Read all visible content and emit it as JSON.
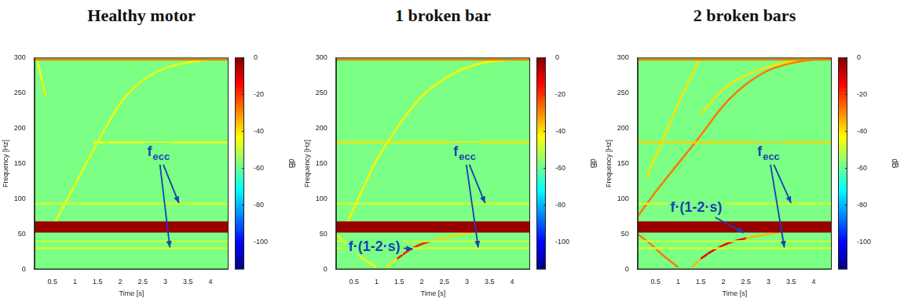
{
  "chart_data": [
    {
      "type": "spectrogram",
      "title": "Healthy motor",
      "xlabel": "Time [s]",
      "ylabel": "Frequency [Hz]",
      "xlim": [
        0.1,
        4.4
      ],
      "xticks": [
        0.5,
        1,
        1.5,
        2,
        2.5,
        3,
        3.5,
        4
      ],
      "ylim": [
        0,
        300
      ],
      "yticks": [
        0,
        50,
        100,
        150,
        200,
        250,
        300
      ],
      "grid": false,
      "background_db": -58,
      "bands": [
        {
          "x": [
            0.1,
            4.4
          ],
          "low": 52,
          "high": 68,
          "db": -3
        }
      ],
      "components": [
        {
          "x": [
            0.1,
            4.4
          ],
          "y": [
            297,
            297
          ],
          "db": -28
        },
        {
          "x": [
            1.4,
            4.4
          ],
          "y": [
            180,
            180
          ],
          "db": -45
        },
        {
          "x": [
            0.1,
            4.4
          ],
          "y": [
            93,
            93
          ],
          "db": -48
        },
        {
          "x": [
            0.1,
            4.4
          ],
          "y": [
            30,
            30
          ],
          "db": -48
        },
        {
          "x": [
            0.1,
            4.4
          ],
          "y": [
            40,
            40
          ],
          "db": -50
        },
        {
          "x": [
            0.5,
            1.0,
            1.5,
            2.0,
            2.5,
            3.0,
            3.5,
            4.0,
            4.4
          ],
          "y": [
            60,
            120,
            180,
            235,
            268,
            285,
            293,
            297,
            298
          ],
          "db": -45
        },
        {
          "x": [
            0.15,
            0.35
          ],
          "y": [
            300,
            245
          ],
          "db": -45
        }
      ],
      "colorbar": {
        "lim": [
          -115,
          0
        ],
        "ticks": [
          0,
          -20,
          -40,
          -60,
          -80,
          -100
        ],
        "label": "dB"
      },
      "annotations": [
        {
          "text": "f",
          "subscript": "ecc",
          "x": 2.85,
          "y": 165,
          "arrows": [
            {
              "x": 3.3,
              "y": 94
            },
            {
              "x": 3.1,
              "y": 31
            }
          ]
        }
      ]
    },
    {
      "type": "spectrogram",
      "title": "1 broken bar",
      "xlabel": "Time [s]",
      "ylabel": "Frequency [Hz]",
      "xlim": [
        0.1,
        4.4
      ],
      "xticks": [
        0.5,
        1,
        1.5,
        2,
        2.5,
        3,
        3.5,
        4
      ],
      "ylim": [
        0,
        300
      ],
      "yticks": [
        0,
        50,
        100,
        150,
        200,
        250,
        300
      ],
      "grid": false,
      "background_db": -58,
      "bands": [
        {
          "x": [
            0.1,
            4.4
          ],
          "low": 52,
          "high": 68,
          "db": -3
        }
      ],
      "components": [
        {
          "x": [
            0.1,
            4.4
          ],
          "y": [
            297,
            297
          ],
          "db": -28
        },
        {
          "x": [
            0.1,
            4.4
          ],
          "y": [
            180,
            180
          ],
          "db": -40
        },
        {
          "x": [
            0.1,
            4.4
          ],
          "y": [
            93,
            93
          ],
          "db": -48
        },
        {
          "x": [
            0.1,
            4.4
          ],
          "y": [
            30,
            30
          ],
          "db": -48
        },
        {
          "x": [
            0.1,
            4.4
          ],
          "y": [
            40,
            40
          ],
          "db": -50
        },
        {
          "x": [
            0.3,
            0.7,
            1.0,
            1.5,
            2.0,
            2.5,
            3.0,
            3.5,
            4.0,
            4.4
          ],
          "y": [
            60,
            115,
            155,
            205,
            245,
            270,
            286,
            294,
            297,
            298
          ],
          "db": -42
        },
        {
          "x": [
            0.1,
            0.4,
            0.7,
            1.0
          ],
          "y": [
            50,
            32,
            15,
            3
          ],
          "db": -42
        },
        {
          "x": [
            1.2,
            1.45
          ],
          "y": [
            3,
            15
          ],
          "db": -40
        },
        {
          "x": [
            1.45,
            1.6,
            1.8,
            2.0,
            2.2
          ],
          "y": [
            15,
            22,
            30,
            36,
            40
          ],
          "db": -18
        },
        {
          "x": [
            2.2,
            2.5,
            3.0,
            3.5
          ],
          "y": [
            40,
            45,
            51,
            56
          ],
          "db": -38
        }
      ],
      "colorbar": {
        "lim": [
          -115,
          0
        ],
        "ticks": [
          0,
          -20,
          -40,
          -60,
          -80,
          -100
        ],
        "label": "dB"
      },
      "annotations": [
        {
          "text": "f",
          "subscript": "ecc",
          "x": 2.95,
          "y": 165,
          "arrows": [
            {
              "x": 3.4,
              "y": 94
            },
            {
              "x": 3.25,
              "y": 31
            }
          ]
        },
        {
          "text": "f·(1-2·s)",
          "x": 0.95,
          "y": 33,
          "arrows": [
            {
              "x": 1.8,
              "y": 29
            }
          ]
        }
      ]
    },
    {
      "type": "spectrogram",
      "title": "2 broken bars",
      "xlabel": "Time [s]",
      "ylabel": "Frequency [Hz]",
      "xlim": [
        0.1,
        4.4
      ],
      "xticks": [
        0.5,
        1,
        1.5,
        2,
        2.5,
        3,
        3.5,
        4
      ],
      "ylim": [
        0,
        300
      ],
      "yticks": [
        0,
        50,
        100,
        150,
        200,
        250,
        300
      ],
      "grid": false,
      "background_db": -58,
      "bands": [
        {
          "x": [
            0.1,
            4.4
          ],
          "low": 52,
          "high": 68,
          "db": -3
        }
      ],
      "components": [
        {
          "x": [
            0.1,
            4.4
          ],
          "y": [
            297,
            297
          ],
          "db": -28
        },
        {
          "x": [
            0.1,
            4.4
          ],
          "y": [
            180,
            180
          ],
          "db": -38
        },
        {
          "x": [
            0.1,
            4.4
          ],
          "y": [
            93,
            93
          ],
          "db": -48
        },
        {
          "x": [
            0.1,
            4.4
          ],
          "y": [
            30,
            30
          ],
          "db": -48
        },
        {
          "x": [
            0.1,
            4.4
          ],
          "y": [
            40,
            40
          ],
          "db": -50
        },
        {
          "x": [
            0.1,
            0.5,
            1.0,
            1.5,
            2.0,
            2.5,
            3.0,
            3.5,
            4.0,
            4.4
          ],
          "y": [
            75,
            110,
            150,
            190,
            232,
            262,
            282,
            292,
            297,
            298
          ],
          "db": -28
        },
        {
          "x": [
            0.3,
            0.7,
            1.0,
            1.3,
            1.5
          ],
          "y": [
            130,
            190,
            235,
            275,
            300
          ],
          "db": -40
        },
        {
          "x": [
            1.5,
            2.0,
            2.5,
            3.0,
            3.5,
            4.0
          ],
          "y": [
            220,
            255,
            275,
            287,
            294,
            297
          ],
          "db": -40
        },
        {
          "x": [
            0.1,
            0.4,
            0.7,
            1.0
          ],
          "y": [
            50,
            35,
            18,
            3
          ],
          "db": -28
        },
        {
          "x": [
            1.3,
            1.5
          ],
          "y": [
            3,
            15
          ],
          "db": -35
        },
        {
          "x": [
            1.5,
            1.7,
            1.9,
            2.1,
            2.3,
            2.5
          ],
          "y": [
            15,
            24,
            31,
            37,
            41,
            44
          ],
          "db": -12
        },
        {
          "x": [
            2.5,
            3.0,
            3.5
          ],
          "y": [
            44,
            50,
            56
          ],
          "db": -35
        }
      ],
      "colorbar": {
        "lim": [
          -115,
          0
        ],
        "ticks": [
          0,
          -20,
          -40,
          -60,
          -80,
          -100
        ],
        "label": "dB"
      },
      "annotations": [
        {
          "text": "f",
          "subscript": "ecc",
          "x": 3.0,
          "y": 165,
          "arrows": [
            {
              "x": 3.5,
              "y": 94
            },
            {
              "x": 3.35,
              "y": 31
            }
          ]
        },
        {
          "text": "f·(1-2·s)",
          "x": 1.4,
          "y": 88,
          "arrows": [
            {
              "x": 2.45,
              "y": 52
            }
          ]
        }
      ]
    }
  ]
}
